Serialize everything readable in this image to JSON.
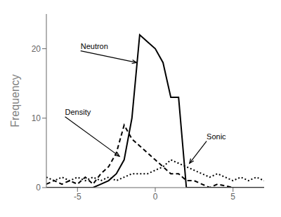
{
  "chart_data": {
    "type": "line",
    "ylabel": "Frequency",
    "xlim": [
      -7,
      7
    ],
    "ylim": [
      0,
      25
    ],
    "xticks": [
      -5,
      0,
      5
    ],
    "yticks": [
      0,
      10,
      20
    ],
    "grid": false,
    "series": [
      {
        "x": [
          -7,
          -6,
          -5,
          -4,
          -3.5,
          -3,
          -2.5,
          -2,
          -1.5,
          -1,
          -0.5,
          0,
          0.5,
          1,
          1.5,
          2,
          2.5,
          3,
          3.5,
          4,
          5,
          6,
          7
        ],
        "values": [
          0,
          0,
          0,
          0,
          0.5,
          1,
          2,
          4,
          10,
          22,
          21,
          20,
          18,
          13,
          13,
          0,
          0,
          0,
          0,
          0,
          0,
          0,
          0
        ],
        "color": "#000000",
        "line_style": "solid"
      },
      {
        "x": [
          -7,
          -6.5,
          -6,
          -5.5,
          -5,
          -4.5,
          -4,
          -3.5,
          -3,
          -2.5,
          -2,
          -1.5,
          -1,
          -0.5,
          0,
          0.5,
          1,
          1.5,
          2,
          2.5,
          3,
          3.5,
          4,
          5,
          6,
          7
        ],
        "values": [
          0.5,
          1,
          0.5,
          1,
          0.5,
          1.5,
          0.5,
          2,
          3,
          5,
          9,
          7,
          6,
          5,
          4,
          3,
          2,
          2,
          1,
          1,
          0.5,
          0,
          0.5,
          0,
          0,
          0
        ],
        "color": "#000000",
        "line_style": "dashed"
      },
      {
        "x": [
          -7,
          -6.5,
          -6,
          -5.5,
          -5,
          -4.5,
          -4,
          -3.5,
          -3,
          -2.5,
          -2,
          -1.5,
          -1,
          -0.5,
          0,
          0.5,
          1,
          1.5,
          2,
          2.5,
          3,
          3.5,
          4,
          4.5,
          5,
          5.5,
          6,
          6.5,
          7
        ],
        "values": [
          1.5,
          1,
          1.5,
          1,
          1.5,
          1,
          1.5,
          1,
          1.5,
          1,
          1.5,
          2,
          2,
          2,
          2.5,
          3,
          4,
          3.5,
          3,
          2.5,
          2,
          1.5,
          2,
          1.5,
          1,
          1.5,
          1,
          1.5,
          1
        ],
        "color": "#000000",
        "line_style": "dotted"
      }
    ],
    "annotations": [
      {
        "text": "Neutron",
        "xy": [
          -1.2,
          18
        ],
        "xytext": [
          -4.8,
          20
        ]
      },
      {
        "text": "Density",
        "xy": [
          -2.3,
          4.5
        ],
        "xytext": [
          -5.8,
          10.5
        ]
      },
      {
        "text": "Sonic",
        "xy": [
          2.2,
          3.5
        ],
        "xytext": [
          3.3,
          7
        ]
      }
    ]
  }
}
